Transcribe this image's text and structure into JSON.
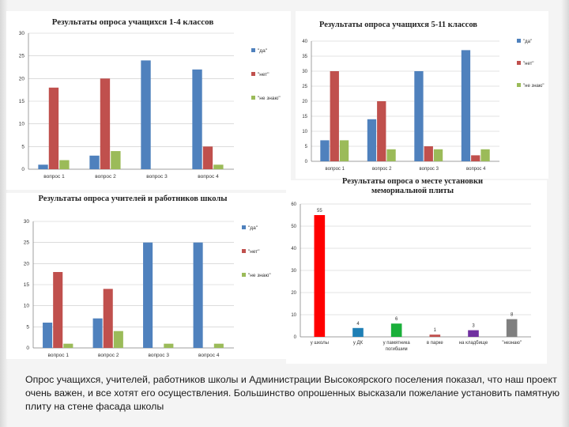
{
  "colors": {
    "blue": "#4F81BD",
    "red": "#C0504D",
    "green": "#9BBB59",
    "bright_red": "#FF0000",
    "teal": "#1F7FB5",
    "lime": "#1AAF3A",
    "purple": "#7030A0",
    "grey": "#7F7F7F"
  },
  "caption": "Опрос  учащихся, учителей, работников  школы и Администрации Высокоярского поселения показал, что наш проект очень  важен, и все хотят его осуществления. Большинство опрошенных высказали пожелание установить памятную плиту на стене  фасада школы",
  "chart_data": [
    {
      "type": "bar",
      "title": "Результаты опроса учащихся 1-4 классов",
      "categories": [
        "вопрос 1",
        "вопрос 2",
        "вопрос 3",
        "вопрос 4"
      ],
      "series": [
        {
          "name": "\"да\"",
          "values": [
            1,
            3,
            24,
            22
          ]
        },
        {
          "name": "\"нет\"",
          "values": [
            18,
            20,
            0,
            5
          ]
        },
        {
          "name": "\"не знаю\"",
          "values": [
            2,
            4,
            0,
            1
          ]
        }
      ],
      "yticks": [
        "0",
        "5",
        "10",
        "15",
        "20",
        "25",
        "30"
      ],
      "ylim": [
        0,
        30
      ],
      "grid": true,
      "legend": "right"
    },
    {
      "type": "bar",
      "title": "Результаты опроса учащихся 5-11 классов",
      "categories": [
        "вопрос 1",
        "вопрос 2",
        "вопрос 3",
        "вопрос 4"
      ],
      "series": [
        {
          "name": "\"да\"",
          "values": [
            7,
            14,
            30,
            37
          ]
        },
        {
          "name": "\"нет\"",
          "values": [
            30,
            20,
            5,
            2
          ]
        },
        {
          "name": "\"не знаю\"",
          "values": [
            7,
            4,
            4,
            4
          ]
        }
      ],
      "yticks": [
        "0",
        "5",
        "10",
        "15",
        "20",
        "25",
        "30",
        "35",
        "40"
      ],
      "ylim": [
        0,
        40
      ],
      "grid": true,
      "legend": "right"
    },
    {
      "type": "bar",
      "title": "Результаты опроса учителей и работников школы",
      "categories": [
        "вопрос 1",
        "вопрос 2",
        "вопрос 3",
        "вопрос 4"
      ],
      "series": [
        {
          "name": "\"да\"",
          "values": [
            6,
            7,
            25,
            25
          ]
        },
        {
          "name": "\"нет\"",
          "values": [
            18,
            14,
            0,
            0
          ]
        },
        {
          "name": "\"не знаю\"",
          "values": [
            1,
            4,
            1,
            1
          ]
        }
      ],
      "yticks": [
        "0",
        "5",
        "10",
        "15",
        "20",
        "25",
        "30"
      ],
      "ylim": [
        0,
        30
      ],
      "grid": true,
      "legend": "right"
    },
    {
      "type": "bar",
      "title": "Результаты опроса о месте установки мемориальной плиты",
      "categories": [
        "у школы",
        "у ДК",
        "у памятника погибшим",
        "в парке",
        "на кладбище",
        "\"незнаю\""
      ],
      "values": [
        55,
        4,
        6,
        1,
        3,
        8
      ],
      "value_labels": [
        "55",
        "4",
        "6",
        "1",
        "3",
        "8"
      ],
      "bar_colors": [
        "bright_red",
        "teal",
        "lime",
        "red",
        "purple",
        "grey"
      ],
      "yticks": [
        "0",
        "10",
        "20",
        "30",
        "40",
        "50",
        "60"
      ],
      "ylim": [
        0,
        60
      ],
      "grid": true,
      "legend": "none"
    }
  ]
}
